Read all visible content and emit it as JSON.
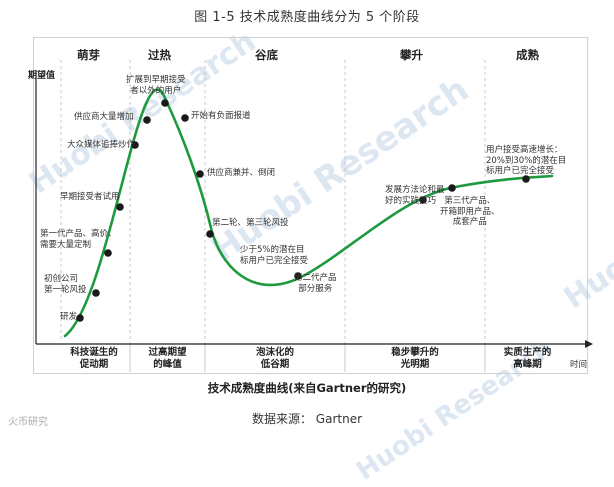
{
  "figure_title": "图 1-5  技术成熟度曲线分为 5 个阶段",
  "y_axis_label": "期望值",
  "x_axis_label": "时间",
  "phases": [
    {
      "name": "萌芽",
      "bottom": "科技诞生的\n促动期"
    },
    {
      "name": "过热",
      "bottom": "过高期望\n的峰值"
    },
    {
      "name": "谷底",
      "bottom": "泡沫化的\n低谷期"
    },
    {
      "name": "攀升",
      "bottom": "稳步攀升的\n光明期"
    },
    {
      "name": "成熟",
      "bottom": "实质生产的\n高峰期"
    }
  ],
  "annotations": {
    "a1": "研发",
    "a2": "初创公司\n第一轮风投",
    "a3": "第一代产品、高价、\n需要大量定制",
    "a4": "早期接受者试用",
    "a5": "大众媒体追捧炒作",
    "a6": "供应商大量增加",
    "a7": "扩展到早期接受\n者以外的用户",
    "a8": "开始有负面报道",
    "a9": "供应商兼并、倒闭",
    "a10": "第二轮、第三轮风投",
    "a11": "少于5%的潜在目\n标用户已完全接受",
    "a12": "第二代产品\n部分服务",
    "a13": "发展方法论和最\n好的实践技巧",
    "a14": "第三代产品、\n开箱即用产品、\n成套产品",
    "a15": "用户接受高速增长：\n20%到30%的潜在目\n标用户已完全接受"
  },
  "caption": "技术成熟度曲线(来自Gartner的研究)",
  "source": "数据来源：  Gartner",
  "watermark": "Huobi Research",
  "corner_logo": "火币研究",
  "colors": {
    "curve": "#1e9a3e",
    "dot": "#1a1a1a",
    "watermark": "#dde7f2"
  }
}
